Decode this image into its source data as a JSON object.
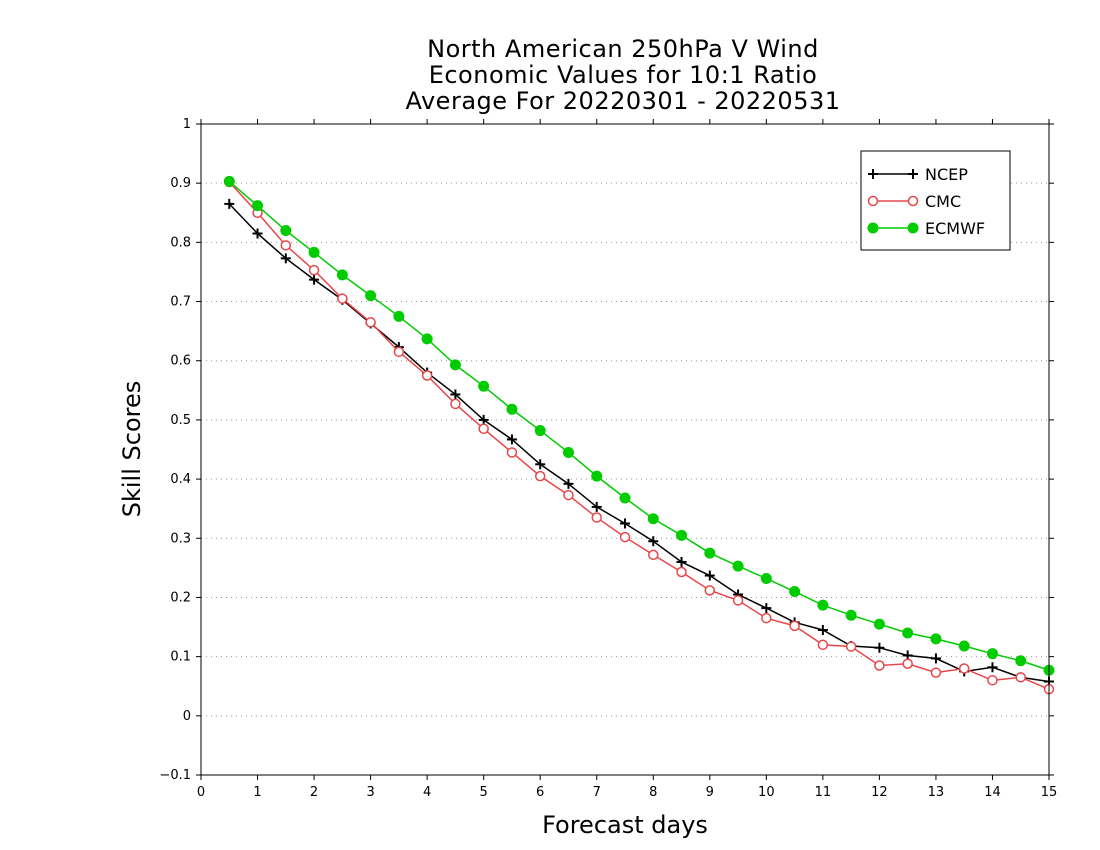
{
  "chart_data": {
    "type": "line",
    "title_lines": [
      "North American 250hPa V Wind",
      "Economic Values for 10:1 Ratio",
      "Average For 20220301 - 20220531"
    ],
    "xlabel": "Forecast days",
    "ylabel": "Skill Scores",
    "xlim": [
      0,
      15
    ],
    "ylim": [
      -0.1,
      1
    ],
    "x_ticks": [
      "0",
      "1",
      "2",
      "3",
      "4",
      "5",
      "6",
      "7",
      "8",
      "9",
      "10",
      "11",
      "12",
      "13",
      "14",
      "15"
    ],
    "y_ticks": [
      "−0.1",
      "0",
      "0.1",
      "0.2",
      "0.3",
      "0.4",
      "0.5",
      "0.6",
      "0.7",
      "0.8",
      "0.9",
      "1"
    ],
    "grid": "horizontal dotted",
    "legend_position": "top-right",
    "x": [
      0.5,
      1,
      1.5,
      2,
      2.5,
      3,
      3.5,
      4,
      4.5,
      5,
      5.5,
      6,
      6.5,
      7,
      7.5,
      8,
      8.5,
      9,
      9.5,
      10,
      10.5,
      11,
      11.5,
      12,
      12.5,
      13,
      13.5,
      14,
      14.5,
      15
    ],
    "series": [
      {
        "name": "NCEP",
        "color": "#000000",
        "marker": "plus",
        "values": [
          0.865,
          0.815,
          0.773,
          0.737,
          0.703,
          0.663,
          0.623,
          0.58,
          0.543,
          0.5,
          0.467,
          0.425,
          0.392,
          0.353,
          0.325,
          0.295,
          0.26,
          0.237,
          0.205,
          0.182,
          0.158,
          0.145,
          0.118,
          0.115,
          0.102,
          0.097,
          0.075,
          0.082,
          0.065,
          0.058
        ]
      },
      {
        "name": "CMC",
        "color": "#e8474a",
        "marker": "open-circle",
        "values": [
          0.902,
          0.85,
          0.795,
          0.753,
          0.705,
          0.665,
          0.615,
          0.575,
          0.527,
          0.485,
          0.445,
          0.405,
          0.373,
          0.335,
          0.302,
          0.272,
          0.243,
          0.212,
          0.195,
          0.165,
          0.152,
          0.12,
          0.117,
          0.085,
          0.088,
          0.073,
          0.08,
          0.06,
          0.065,
          0.045
        ]
      },
      {
        "name": "ECMWF",
        "color": "#00cc00",
        "marker": "filled-circle",
        "values": [
          0.903,
          0.862,
          0.82,
          0.783,
          0.745,
          0.71,
          0.675,
          0.637,
          0.593,
          0.557,
          0.518,
          0.482,
          0.445,
          0.405,
          0.368,
          0.333,
          0.305,
          0.275,
          0.253,
          0.232,
          0.21,
          0.187,
          0.17,
          0.155,
          0.14,
          0.13,
          0.118,
          0.105,
          0.093,
          0.077
        ]
      }
    ]
  }
}
